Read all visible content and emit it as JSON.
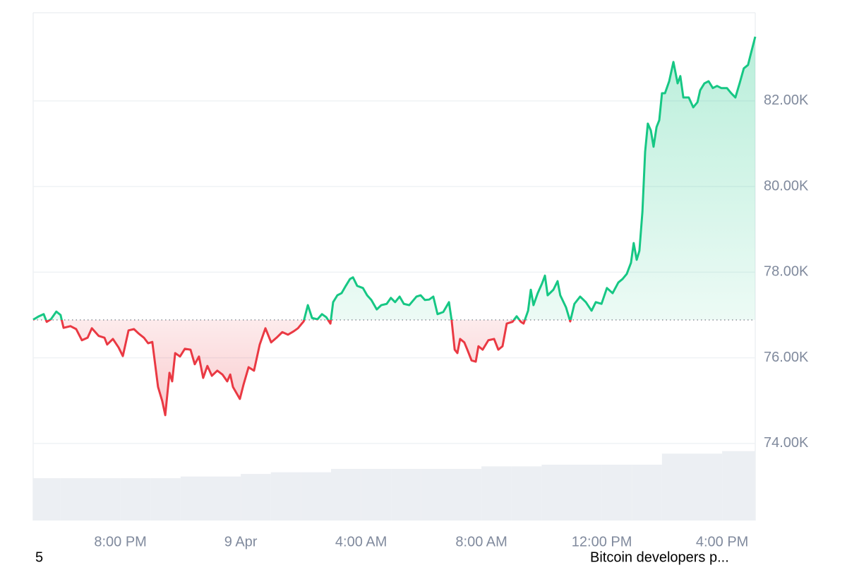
{
  "chart_data": {
    "type": "line",
    "x": [
      17.1,
      17.29,
      17.45,
      17.55,
      17.69,
      17.87,
      18.01,
      18.11,
      18.34,
      18.53,
      18.72,
      18.91,
      19.05,
      19.28,
      19.47,
      19.56,
      19.75,
      19.94,
      20.08,
      20.27,
      20.45,
      20.6,
      20.78,
      20.92,
      21.06,
      21.25,
      21.39,
      21.49,
      21.63,
      21.72,
      21.82,
      21.98,
      22.14,
      22.33,
      22.47,
      22.61,
      22.75,
      22.89,
      23.04,
      23.22,
      23.39,
      23.55,
      23.65,
      23.74,
      23.97,
      24.09,
      24.26,
      24.44,
      24.63,
      24.82,
      25.01,
      25.19,
      25.38,
      25.57,
      25.76,
      25.9,
      26.09,
      26.23,
      26.37,
      26.55,
      26.7,
      26.84,
      26.98,
      27.07,
      27.21,
      27.35,
      27.49,
      27.63,
      27.73,
      27.87,
      28.06,
      28.2,
      28.34,
      28.52,
      28.67,
      28.85,
      28.99,
      29.13,
      29.28,
      29.42,
      29.6,
      29.84,
      29.98,
      30.12,
      30.26,
      30.4,
      30.54,
      30.73,
      30.92,
      31.01,
      31.11,
      31.2,
      31.29,
      31.43,
      31.53,
      31.67,
      31.81,
      31.9,
      32.04,
      32.23,
      32.42,
      32.56,
      32.7,
      32.84,
      33.03,
      33.17,
      33.31,
      33.4,
      33.55,
      33.64,
      33.73,
      33.87,
      34.01,
      34.11,
      34.2,
      34.39,
      34.53,
      34.62,
      34.81,
      34.95,
      35.09,
      35.28,
      35.47,
      35.66,
      35.8,
      35.99,
      36.17,
      36.36,
      36.55,
      36.69,
      36.83,
      36.97,
      37.06,
      37.16,
      37.25,
      37.35,
      37.44,
      37.53,
      37.63,
      37.72,
      37.82,
      37.91,
      38.0,
      38.1,
      38.24,
      38.38,
      38.52,
      38.61,
      38.71,
      38.89,
      39.04,
      39.18,
      39.27,
      39.41,
      39.55,
      39.69,
      39.83,
      39.97,
      40.16,
      40.3,
      40.44,
      40.58,
      40.72,
      40.86,
      40.96,
      41.1
    ],
    "series": [
      {
        "up_color": "#16c784",
        "down_color": "#ea3943",
        "values": [
          76890,
          76970,
          77020,
          76840,
          76900,
          77080,
          77000,
          76700,
          76740,
          76670,
          76410,
          76470,
          76690,
          76510,
          76470,
          76310,
          76440,
          76240,
          76040,
          76640,
          76670,
          76570,
          76470,
          76340,
          76370,
          75320,
          74990,
          74660,
          75650,
          75450,
          76110,
          76030,
          76210,
          76190,
          75850,
          76030,
          75530,
          75810,
          75580,
          75700,
          75610,
          75450,
          75610,
          75320,
          75040,
          75370,
          75780,
          75700,
          76310,
          76690,
          76360,
          76470,
          76600,
          76540,
          76620,
          76690,
          76850,
          77230,
          76930,
          76900,
          77020,
          76950,
          76800,
          77300,
          77460,
          77510,
          77680,
          77840,
          77880,
          77680,
          77630,
          77460,
          77350,
          77130,
          77230,
          77260,
          77400,
          77300,
          77430,
          77260,
          77230,
          77430,
          77460,
          77350,
          77360,
          77430,
          77020,
          77070,
          77300,
          76870,
          76190,
          76110,
          76440,
          76360,
          76190,
          75940,
          75910,
          76270,
          76190,
          76410,
          76440,
          76190,
          76270,
          76800,
          76840,
          76970,
          76840,
          76800,
          77100,
          77590,
          77230,
          77510,
          77730,
          77920,
          77460,
          77590,
          77790,
          77460,
          77180,
          76850,
          77260,
          77430,
          77300,
          77100,
          77300,
          77260,
          77630,
          77510,
          77760,
          77840,
          77960,
          78220,
          78680,
          78290,
          78500,
          79410,
          80810,
          81470,
          81310,
          80930,
          81390,
          81550,
          82180,
          82180,
          82460,
          82910,
          82410,
          82580,
          82080,
          82080,
          81850,
          81970,
          82250,
          82410,
          82460,
          82300,
          82350,
          82300,
          82300,
          82180,
          82080,
          82410,
          82760,
          82840,
          83120,
          83500
        ]
      }
    ],
    "baseline": 76885,
    "xlim": [
      17.1,
      41.1
    ],
    "xticks": [
      {
        "value": 20,
        "label": "8:00 PM"
      },
      {
        "value": 24,
        "label": "9 Apr"
      },
      {
        "value": 28,
        "label": "4:00 AM"
      },
      {
        "value": 32,
        "label": "8:00 AM"
      },
      {
        "value": 36,
        "label": "12:00 PM"
      },
      {
        "value": 40,
        "label": "4:00 PM"
      }
    ],
    "ylim": [
      72200,
      84060
    ],
    "yticks": [
      {
        "value": 74000,
        "label": "74.00K"
      },
      {
        "value": 76000,
        "label": "76.00K"
      },
      {
        "value": 78000,
        "label": "78.00K"
      },
      {
        "value": 80000,
        "label": "80.00K"
      },
      {
        "value": 82000,
        "label": "82.00K"
      }
    ],
    "grid": true,
    "volume": {
      "color": "#eceff3",
      "ylim": [
        0,
        600
      ],
      "x": [
        17.1,
        18,
        19,
        20,
        21,
        22,
        23,
        24,
        25,
        26,
        27,
        28,
        29,
        30,
        31,
        32,
        33,
        34,
        35,
        36,
        37,
        38,
        39,
        40
      ],
      "values": [
        50,
        50,
        50,
        50,
        50,
        52,
        52,
        55,
        57,
        57,
        61,
        61,
        61,
        61,
        61,
        64,
        64,
        66,
        66,
        66,
        66,
        79,
        79,
        82
      ]
    }
  },
  "footer": {
    "left": "5",
    "right": "Bitcoin developers p..."
  }
}
